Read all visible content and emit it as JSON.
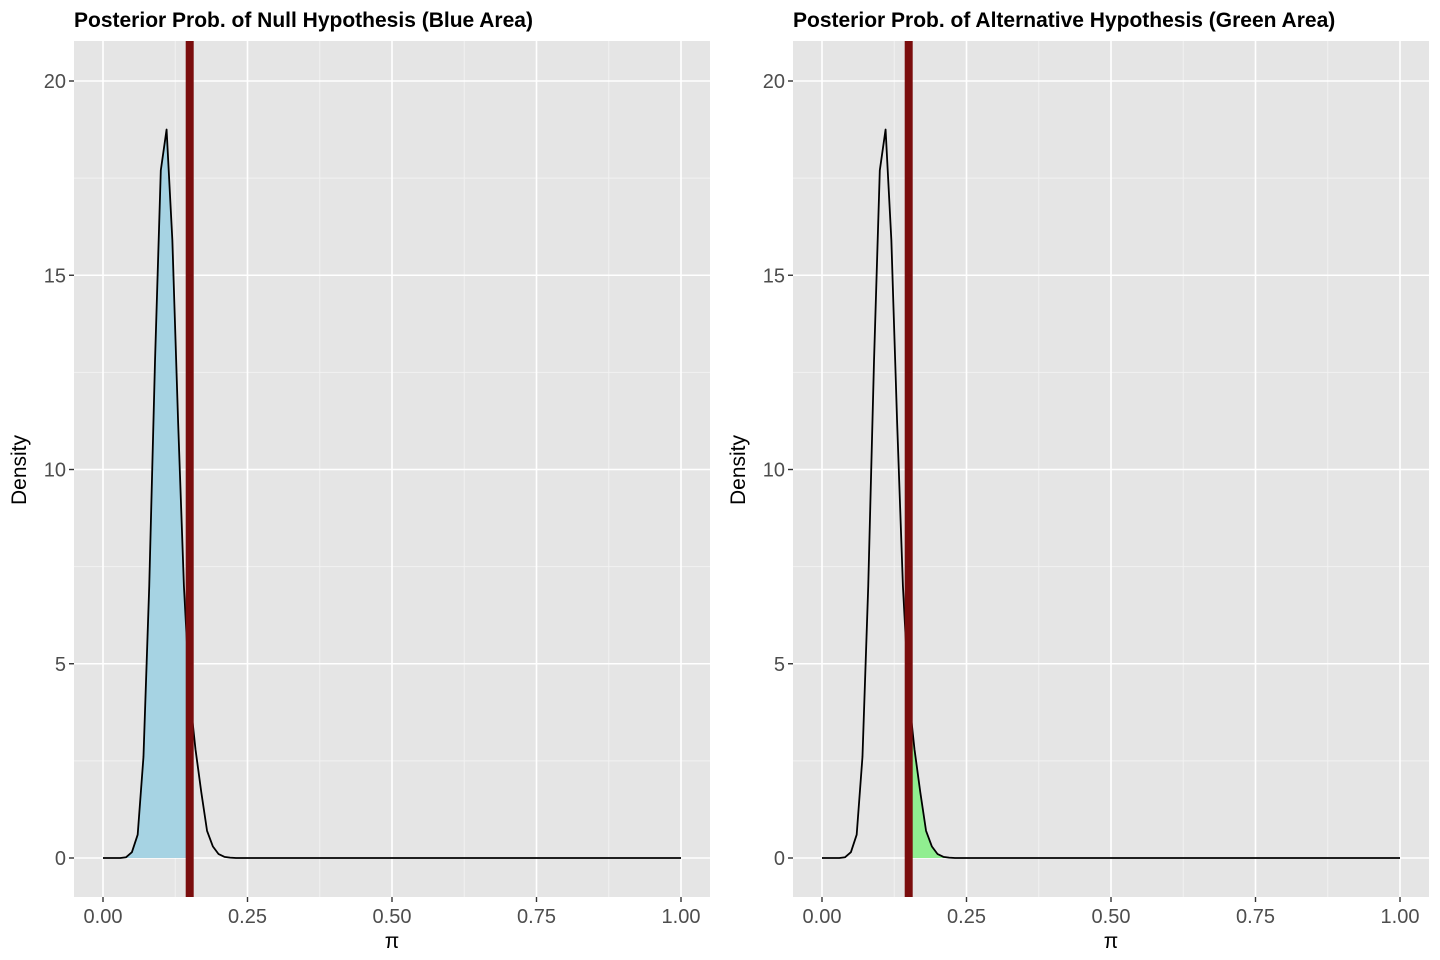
{
  "chart_data": [
    {
      "type": "area",
      "title": "Posterior Prob. of Null Hypothesis (Blue Area)",
      "xlabel": "π",
      "ylabel": "Density",
      "xlim": [
        0,
        1
      ],
      "ylim": [
        0,
        20
      ],
      "xticks": [
        "0.00",
        "0.25",
        "0.50",
        "0.75",
        "1.00"
      ],
      "yticks": [
        "0",
        "5",
        "10",
        "15",
        "20"
      ],
      "threshold": 0.15,
      "shade": "left",
      "colors": {
        "fill": "#a6d3e3",
        "curve": "#000000",
        "threshold_line": "#7a0d0d"
      },
      "grid": true,
      "x": [
        0.0,
        0.01,
        0.02,
        0.03,
        0.04,
        0.05,
        0.06,
        0.07,
        0.08,
        0.09,
        0.1,
        0.11,
        0.12,
        0.13,
        0.14,
        0.15,
        0.16,
        0.17,
        0.18,
        0.19,
        0.2,
        0.21,
        0.22,
        0.23,
        0.25,
        0.3,
        0.4,
        0.5,
        0.6,
        0.7,
        0.8,
        0.9,
        1.0
      ],
      "y": [
        0,
        0,
        0,
        0,
        0.02,
        0.15,
        0.6,
        2.6,
        7.0,
        12.8,
        17.7,
        18.75,
        15.9,
        11.2,
        7.0,
        4.2,
        2.8,
        1.7,
        0.7,
        0.3,
        0.1,
        0.03,
        0.01,
        0,
        0,
        0,
        0,
        0,
        0,
        0,
        0,
        0,
        0
      ]
    },
    {
      "type": "area",
      "title": "Posterior Prob. of Alternative Hypothesis (Green Area)",
      "xlabel": "π",
      "ylabel": "Density",
      "xlim": [
        0,
        1
      ],
      "ylim": [
        0,
        20
      ],
      "xticks": [
        "0.00",
        "0.25",
        "0.50",
        "0.75",
        "1.00"
      ],
      "yticks": [
        "0",
        "5",
        "10",
        "15",
        "20"
      ],
      "threshold": 0.15,
      "shade": "right",
      "colors": {
        "fill": "#90ee90",
        "curve": "#000000",
        "threshold_line": "#7a0d0d"
      },
      "grid": true,
      "x": [
        0.0,
        0.01,
        0.02,
        0.03,
        0.04,
        0.05,
        0.06,
        0.07,
        0.08,
        0.09,
        0.1,
        0.11,
        0.12,
        0.13,
        0.14,
        0.15,
        0.16,
        0.17,
        0.18,
        0.19,
        0.2,
        0.21,
        0.22,
        0.23,
        0.25,
        0.3,
        0.4,
        0.5,
        0.6,
        0.7,
        0.8,
        0.9,
        1.0
      ],
      "y": [
        0,
        0,
        0,
        0,
        0.02,
        0.15,
        0.6,
        2.6,
        7.0,
        12.8,
        17.7,
        18.75,
        15.9,
        11.2,
        7.0,
        4.2,
        2.8,
        1.7,
        0.7,
        0.3,
        0.1,
        0.03,
        0.01,
        0,
        0,
        0,
        0,
        0,
        0,
        0,
        0,
        0,
        0
      ]
    }
  ]
}
